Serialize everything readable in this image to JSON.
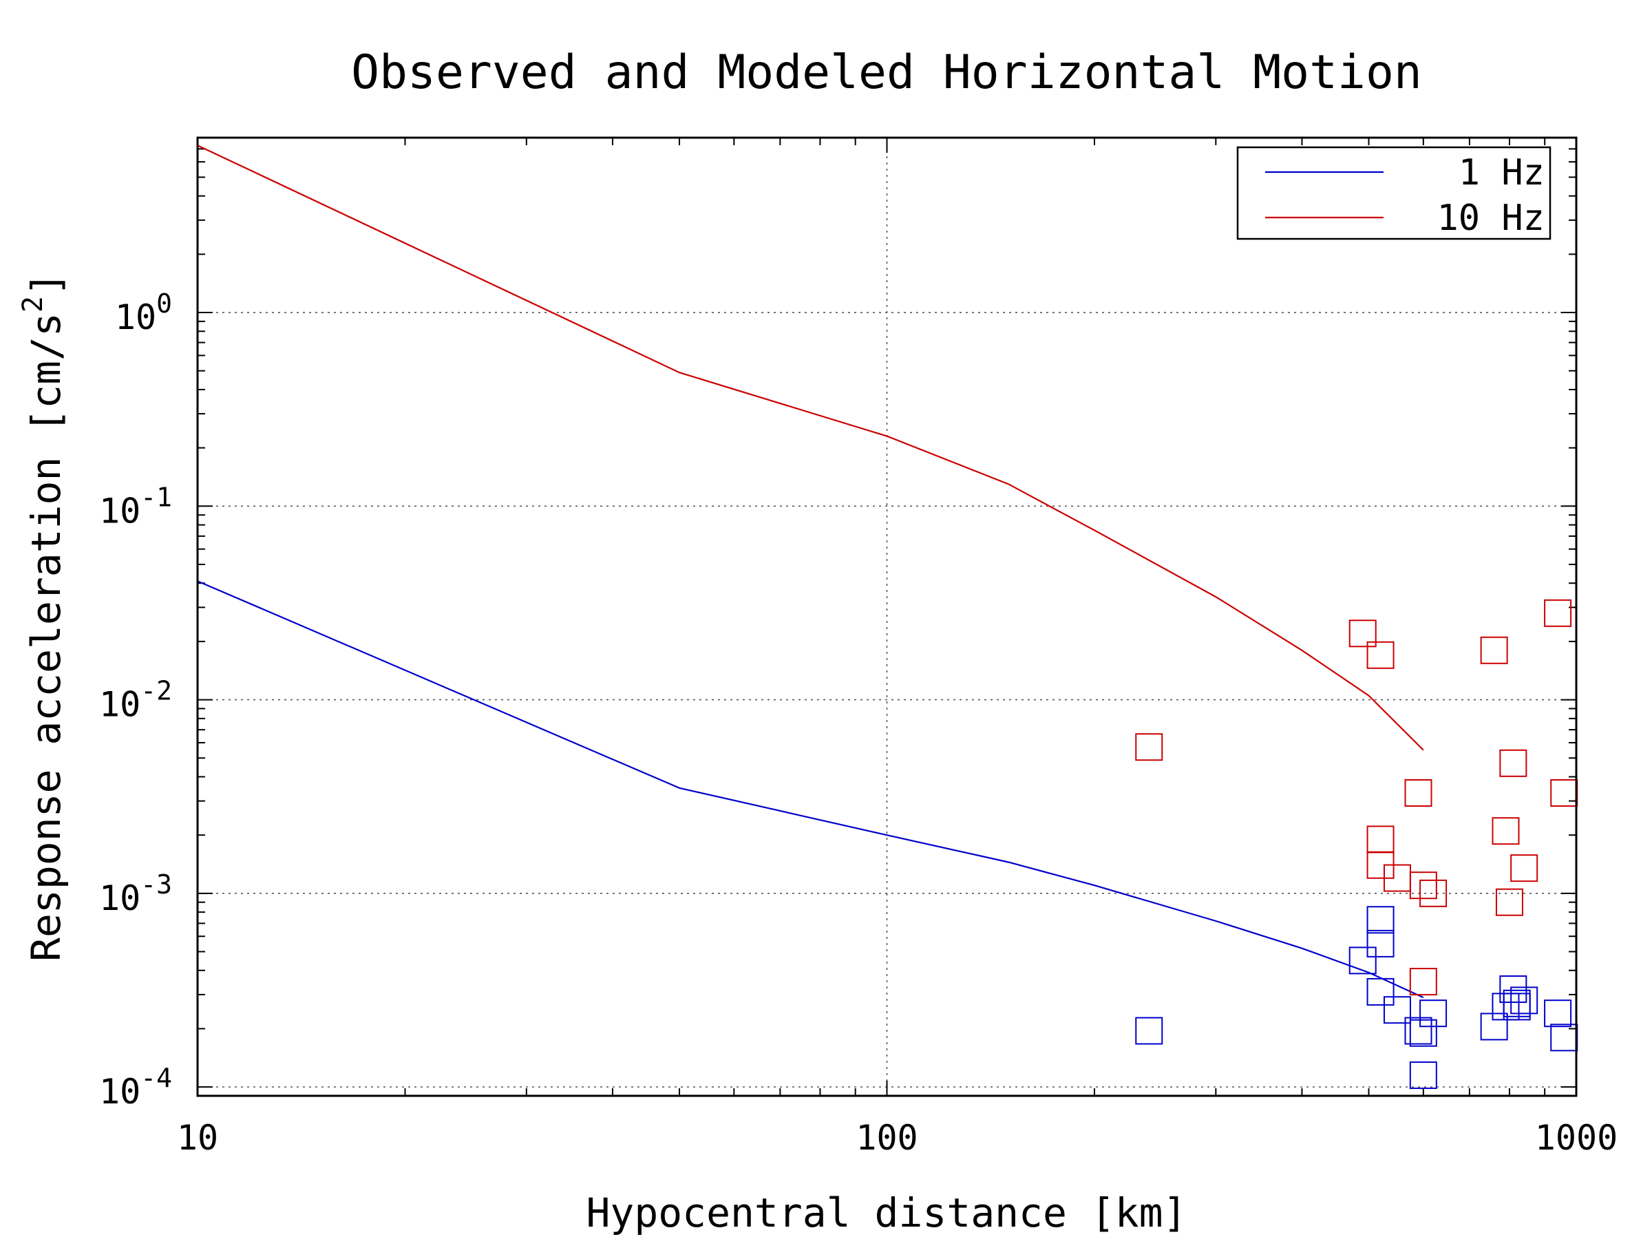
{
  "chart_data": {
    "type": "line",
    "title": "Observed and Modeled Horizontal Motion",
    "xlabel": "Hypocentral distance [km]",
    "ylabel_main": "Response acceleration [cm/s",
    "ylabel_sup": "2",
    "ylabel_close": "]",
    "xscale": "log",
    "yscale": "log",
    "xlim": [
      10,
      1000
    ],
    "ylim": [
      9e-05,
      8
    ],
    "grid": true,
    "legend_position": "top-right",
    "x_ticks": [
      {
        "value": 10,
        "label": "10"
      },
      {
        "value": 100,
        "label": "100"
      },
      {
        "value": 1000,
        "label": "1000"
      }
    ],
    "y_ticks": [
      {
        "value": 1,
        "base": "10",
        "exp": "0"
      },
      {
        "value": 0.1,
        "base": "10",
        "exp": "-1"
      },
      {
        "value": 0.01,
        "base": "10",
        "exp": "-2"
      },
      {
        "value": 0.001,
        "base": "10",
        "exp": "-3"
      },
      {
        "value": 0.0001,
        "base": "10",
        "exp": "-4"
      }
    ],
    "series": [
      {
        "name": "1 Hz",
        "color": "#0000cc",
        "line": {
          "x": [
            10,
            50,
            100,
            150,
            200,
            300,
            400,
            500,
            600
          ],
          "y": [
            0.041,
            0.0035,
            0.002,
            0.00145,
            0.0011,
            0.00072,
            0.00052,
            0.00039,
            0.00029
          ]
        },
        "observed": {
          "x": [
            240,
            490,
            520,
            520,
            520,
            550,
            590,
            600,
            600,
            620,
            760,
            790,
            810,
            820,
            820,
            840,
            940,
            960
          ],
          "y": [
            0.000195,
            0.00045,
            0.00073,
            0.00055,
            0.00031,
            0.00025,
            0.000195,
            0.00019,
            0.000115,
            0.00024,
            0.000205,
            0.00026,
            0.00032,
            0.00026,
            0.00027,
            0.00028,
            0.00024,
            0.00018
          ]
        }
      },
      {
        "name": "10 Hz",
        "color": "#cc0000",
        "line": {
          "x": [
            10,
            50,
            100,
            150,
            200,
            300,
            400,
            500,
            600
          ],
          "y": [
            7.3,
            0.49,
            0.23,
            0.13,
            0.075,
            0.034,
            0.018,
            0.0105,
            0.0055
          ]
        },
        "observed": {
          "x": [
            240,
            490,
            520,
            520,
            520,
            550,
            590,
            600,
            600,
            620,
            760,
            790,
            800,
            810,
            840,
            940,
            960
          ],
          "y": [
            0.0057,
            0.022,
            0.017,
            0.0019,
            0.0014,
            0.0012,
            0.0033,
            0.0011,
            0.00035,
            0.001,
            0.018,
            0.0021,
            0.0009,
            0.0047,
            0.00135,
            0.028,
            0.0033
          ]
        }
      }
    ]
  }
}
